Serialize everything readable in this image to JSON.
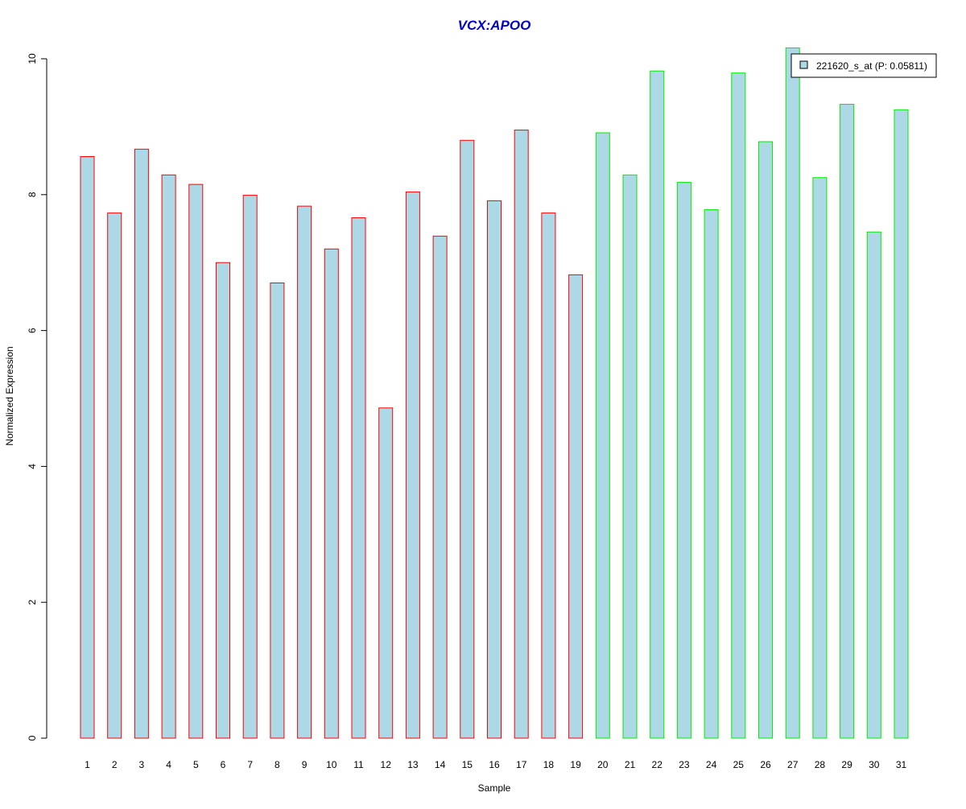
{
  "chart_data": {
    "type": "bar",
    "title": "VCX:APOO",
    "xlabel": "Sample",
    "ylabel": "Normalized Expression",
    "ylim": [
      0,
      10
    ],
    "yticks": [
      0,
      2,
      4,
      6,
      8,
      10
    ],
    "grid": false,
    "legend_position": "top-right",
    "categories": [
      "1",
      "2",
      "3",
      "4",
      "5",
      "6",
      "7",
      "8",
      "9",
      "10",
      "11",
      "12",
      "13",
      "14",
      "15",
      "16",
      "17",
      "18",
      "19",
      "20",
      "21",
      "22",
      "23",
      "24",
      "25",
      "26",
      "27",
      "28",
      "29",
      "30",
      "31"
    ],
    "series": [
      {
        "name": "221620_s_at (P: 0.05811)",
        "values": [
          8.56,
          7.73,
          8.67,
          8.29,
          8.15,
          7.0,
          7.99,
          6.7,
          7.83,
          7.2,
          7.66,
          4.86,
          8.04,
          7.39,
          8.8,
          7.91,
          8.95,
          7.73,
          6.82,
          8.91,
          8.29,
          9.82,
          8.18,
          7.78,
          9.79,
          8.78,
          10.16,
          8.25,
          9.33,
          7.45,
          9.25
        ]
      }
    ],
    "groups": [
      {
        "samples": "1-19",
        "border_color": "#ff0000"
      },
      {
        "samples": "20-31",
        "border_color": "#00ee00"
      }
    ],
    "bar_fill": "#add8e6",
    "title_color": "#0000cd"
  }
}
